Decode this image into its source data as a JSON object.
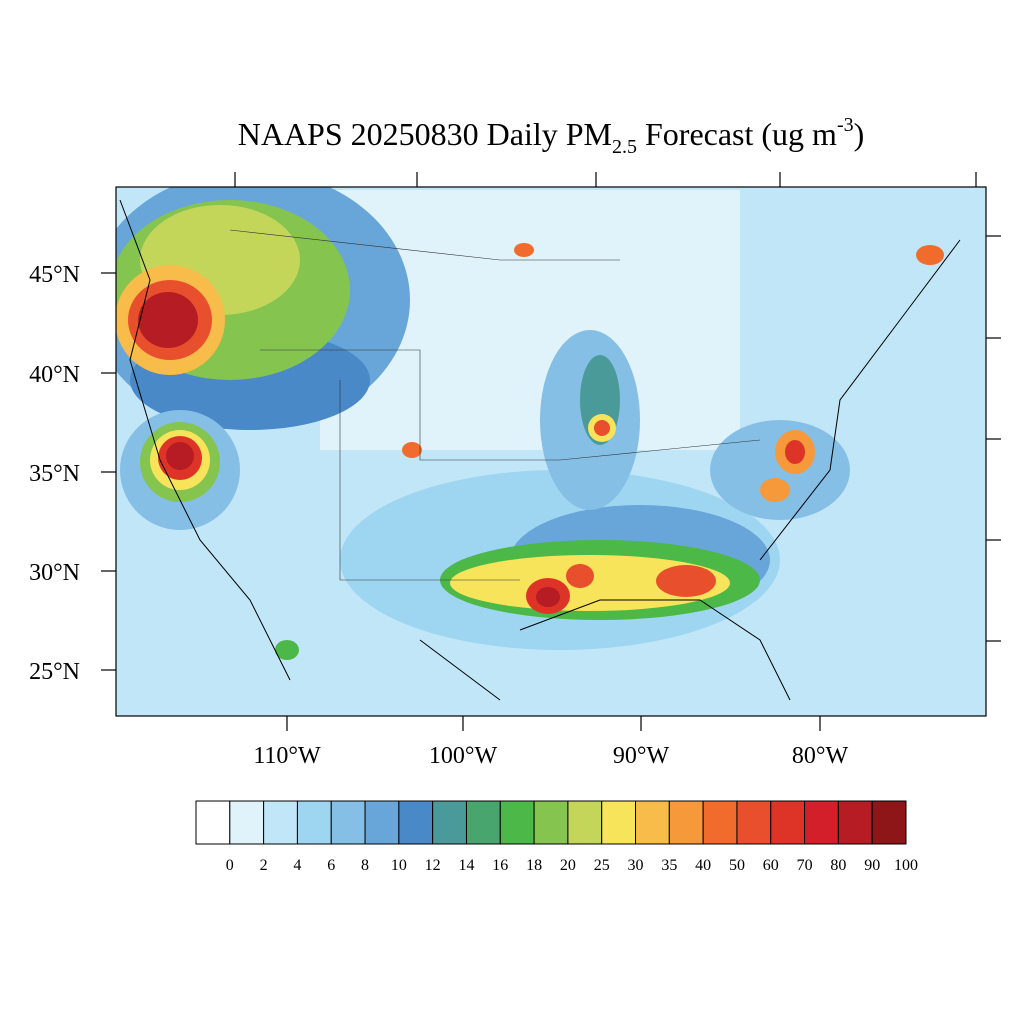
{
  "title": {
    "main": "NAAPS 20250830 Daily PM",
    "sub": "2.5",
    "rest": " Forecast (ug m",
    "sup": "-3",
    "end": ")"
  },
  "map": {
    "lat_labels": [
      "45°N",
      "40°N",
      "35°N",
      "30°N",
      "25°N"
    ],
    "lon_labels": [
      "110°W",
      "100°W",
      "90°W",
      "80°W"
    ]
  },
  "colorbar": {
    "levels": [
      0,
      2,
      4,
      6,
      8,
      10,
      12,
      14,
      16,
      18,
      20,
      25,
      30,
      35,
      40,
      50,
      60,
      70,
      80,
      90,
      100
    ],
    "colors": [
      "#ffffff",
      "#e0f3fb",
      "#c1e6f7",
      "#9ed6f2",
      "#85bfe6",
      "#68a6d9",
      "#4a89c8",
      "#4a9a9a",
      "#47a56d",
      "#4cb848",
      "#85c44e",
      "#c3d65a",
      "#f7e45a",
      "#f8bc4a",
      "#f5993b",
      "#f16c2c",
      "#e84f2c",
      "#de3427",
      "#d21f29",
      "#b51c24",
      "#8e1619"
    ]
  }
}
